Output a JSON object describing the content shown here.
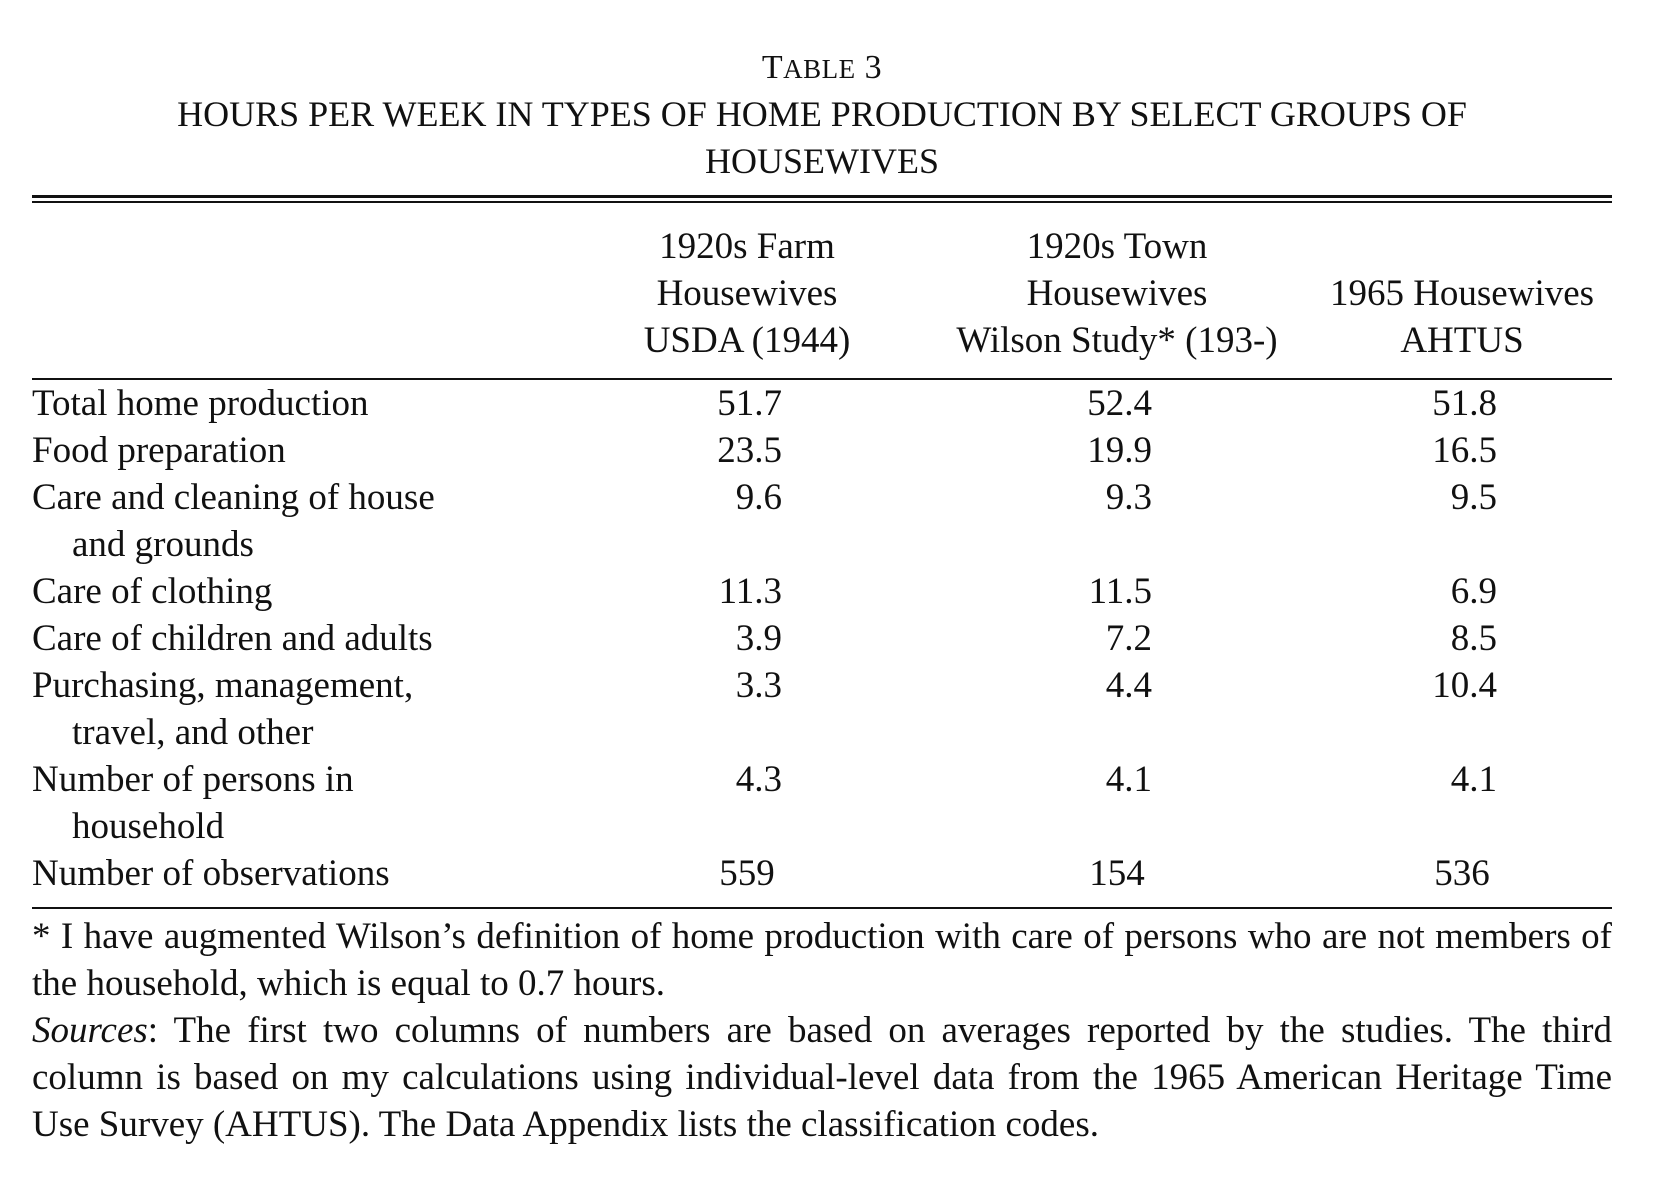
{
  "table": {
    "label_first": "T",
    "label_rest": "ABLE",
    "label_number": "3",
    "title": "HOURS PER WEEK IN TYPES OF HOME PRODUCTION BY SELECT GROUPS OF HOUSEWIVES",
    "columns": [
      {
        "line1": "1920s Farm",
        "line2": "Housewives",
        "line3": "USDA (1944)"
      },
      {
        "line1": "1920s Town",
        "line2": "Housewives",
        "line3": "Wilson Study* (193-)"
      },
      {
        "line1": "",
        "line2": "1965 Housewives",
        "line3": "AHTUS"
      }
    ],
    "rows": [
      {
        "label": "Total home production",
        "label2": "",
        "values": [
          "51.7",
          "52.4",
          "51.8"
        ]
      },
      {
        "label": "Food preparation",
        "label2": "",
        "values": [
          "23.5",
          "19.9",
          "16.5"
        ]
      },
      {
        "label": "Care and cleaning of house",
        "label2": "and grounds",
        "values": [
          "9.6",
          "9.3",
          "9.5"
        ]
      },
      {
        "label": "Care of clothing",
        "label2": "",
        "values": [
          "11.3",
          "11.5",
          "6.9"
        ]
      },
      {
        "label": "Care of children and adults",
        "label2": "",
        "values": [
          "3.9",
          "7.2",
          "8.5"
        ]
      },
      {
        "label": "Purchasing, management,",
        "label2": "travel, and other",
        "values": [
          "3.3",
          "4.4",
          "10.4"
        ]
      },
      {
        "label": "Number of persons in",
        "label2": "household",
        "values": [
          "4.3",
          "4.1",
          "4.1"
        ]
      },
      {
        "label": "Number of observations",
        "label2": "",
        "values": [
          "559",
          "154",
          "536"
        ]
      }
    ]
  },
  "notes": {
    "footnote": "* I have augmented Wilson’s definition of home production with care of persons who are not members of the household, which is equal to 0.7 hours.",
    "sources_label": "Sources",
    "sources_text": ": The first two columns of numbers are based on averages reported by the studies. The third column is based on my calculations using individual-level data from the 1965 American Heritage Time Use Survey (AHTUS). The Data Appendix lists the classification codes."
  }
}
